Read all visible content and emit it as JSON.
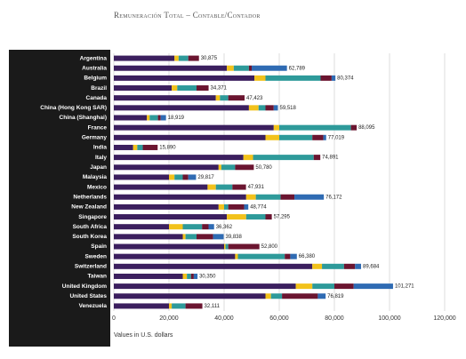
{
  "chart_data": {
    "type": "stacked-bar-horizontal",
    "title": "Remuneración Total – Contable/Contador",
    "x_label": "Values in U.S. dollars",
    "categories": [
      "Argentina",
      "Australia",
      "Belgium",
      "Brazil",
      "Canada",
      "China (Hong Kong SAR)",
      "China (Shanghai)",
      "France",
      "Germany",
      "India",
      "Italy",
      "Japan",
      "Malaysia",
      "Mexico",
      "Netherlands",
      "New Zealand",
      "Singapore",
      "South Africa",
      "South Korea",
      "Spain",
      "Sweden",
      "Switzerland",
      "Taiwan",
      "United Kingdom",
      "United States",
      "Venezuela"
    ],
    "series": [
      {
        "color": "#3b1f5e",
        "values": [
          22000,
          41000,
          51000,
          21000,
          37000,
          49000,
          12000,
          58000,
          55000,
          7000,
          47000,
          38000,
          20000,
          34000,
          48000,
          38000,
          41000,
          20000,
          25000,
          40000,
          44000,
          72000,
          25000,
          66000,
          55000,
          20000
        ]
      },
      {
        "color": "#f2c21b",
        "values": [
          1500,
          2500,
          4000,
          2000,
          1500,
          3500,
          1000,
          2000,
          5000,
          1500,
          3500,
          1000,
          2000,
          3000,
          3500,
          2000,
          7000,
          5000,
          1000,
          500,
          1000,
          3500,
          1500,
          6000,
          2000,
          1000
        ]
      },
      {
        "color": "#2e9a9a",
        "values": [
          3500,
          5500,
          20000,
          7000,
          3000,
          2500,
          3000,
          26000,
          12000,
          2000,
          22000,
          5000,
          3000,
          6000,
          9000,
          1500,
          7000,
          7000,
          4000,
          1000,
          17000,
          8000,
          1500,
          8000,
          4000,
          5000
        ]
      },
      {
        "color": "#6b1530",
        "values": [
          3875,
          1000,
          4000,
          4371,
          5923,
          3000,
          1000,
          2095,
          4000,
          5390,
          2391,
          6780,
          2000,
          4931,
          5000,
          5774,
          2295,
          2362,
          6000,
          11300,
          2000,
          4000,
          1000,
          7000,
          13000,
          6111
        ]
      },
      {
        "color": "#2f6bb3",
        "values": [
          0,
          12789,
          1374,
          0,
          0,
          1518,
          1919,
          0,
          1019,
          0,
          0,
          0,
          2817,
          0,
          10672,
          1500,
          0,
          2000,
          3838,
          0,
          2380,
          2184,
          1350,
          14271,
          2819,
          0
        ]
      }
    ],
    "totals": [
      30875,
      62789,
      80374,
      34371,
      47423,
      59518,
      18919,
      88095,
      77019,
      15890,
      74891,
      50780,
      29817,
      47931,
      76172,
      48774,
      57295,
      36362,
      39838,
      52800,
      66380,
      89684,
      30350,
      101271,
      76819,
      32111
    ],
    "value_labels": [
      "30,875",
      "62,789",
      "80,374",
      "34,371",
      "47,423",
      "59,518",
      "18,919",
      "88,095",
      "77,019",
      "15,890",
      "74,891",
      "50,780",
      "29,817",
      "47,931",
      "76,172",
      "48,774",
      "57,295",
      "36,362",
      "39,838",
      "52,800",
      "66,380",
      "89,684",
      "30,350",
      "101,271",
      "76,819",
      "32,111"
    ],
    "xlim": [
      0,
      120000
    ],
    "xticks": [
      0,
      {
        "value": 20000,
        "label": "20,000"
      },
      {
        "value": 40000,
        "label": "40,000"
      },
      {
        "value": 60000,
        "label": "60,000"
      },
      {
        "value": 80000,
        "label": "80,000"
      },
      {
        "value": 100000,
        "label": "100,000"
      },
      {
        "value": 120000,
        "label": "120,000"
      }
    ],
    "grid": true
  }
}
